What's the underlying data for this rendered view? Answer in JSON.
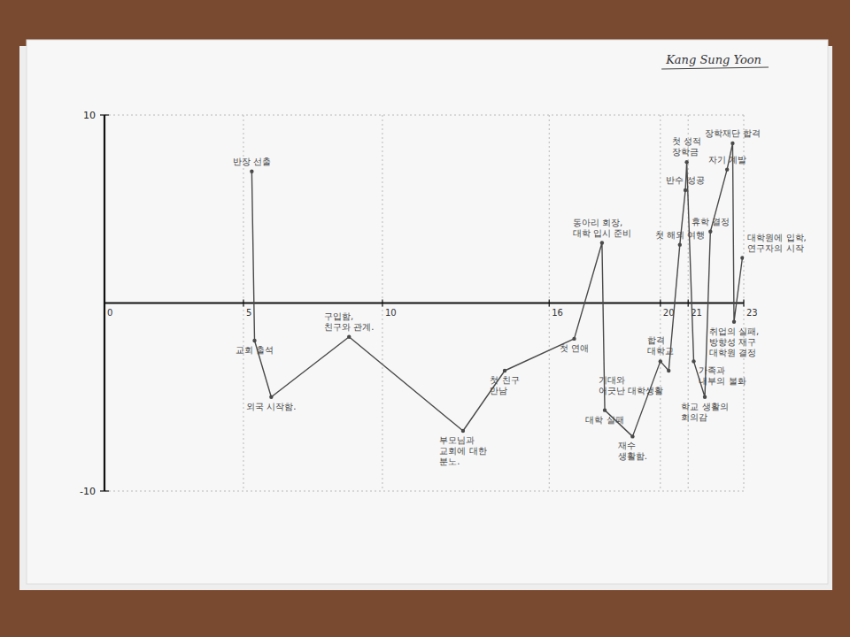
{
  "chart_data": {
    "type": "line",
    "x": [
      5.3,
      5.4,
      6.0,
      8.8,
      12.9,
      14.4,
      16.9,
      17.9,
      18.0,
      19.0,
      20.0,
      20.3,
      20.7,
      20.9,
      20.95,
      21.2,
      21.6,
      21.8,
      22.4,
      22.6,
      22.65,
      22.95
    ],
    "values": [
      7,
      -2,
      -5,
      -1.8,
      -6.8,
      -3.6,
      -1.9,
      3.2,
      -5.7,
      -7.1,
      -3.1,
      -3.6,
      3.1,
      6.0,
      7.5,
      -3.1,
      -5.0,
      3.8,
      7.1,
      8.5,
      -1.0,
      2.4
    ],
    "annotations": [
      [
        "반장 선출"
      ],
      [
        "교회 출석"
      ],
      [
        "외국 시작함."
      ],
      [
        "구입함,",
        "친구와 관계."
      ],
      [
        "부모님과",
        "교회에 대한",
        "분노."
      ],
      [
        "첫 친구",
        "만남"
      ],
      [
        "첫 연애"
      ],
      [
        "동아리 회장,",
        "대학 입시 준비"
      ],
      [
        "대학 실패"
      ],
      [
        "재수",
        "생활함."
      ],
      [
        "합격",
        "대학교"
      ],
      [
        "기대와",
        "어긋난 대학생활"
      ],
      [
        "첫 해외 여행"
      ],
      [
        "반수 성공"
      ],
      [
        "첫 성적",
        "장학금"
      ],
      [
        "가족과",
        "내부의 불화"
      ],
      [
        "학교 생활의",
        "회의감"
      ],
      [
        "휴학 결정"
      ],
      [
        "자기 계발"
      ],
      [
        "장학재단 합격"
      ],
      [
        "취업의 실패,",
        "방향성 재구",
        "대학원 결정"
      ],
      [
        "대학원에 입학,",
        "연구자의 시작"
      ]
    ],
    "xlim": [
      0,
      23
    ],
    "ylim": [
      -10,
      10
    ],
    "xticks": [
      0,
      5,
      10,
      16,
      20,
      21,
      23
    ],
    "yticks": [
      -10,
      10
    ],
    "grid": true,
    "color": "#4a4a4a",
    "marker": "circle",
    "line_style": "solid"
  },
  "signature": "Kang Sung Yoon"
}
